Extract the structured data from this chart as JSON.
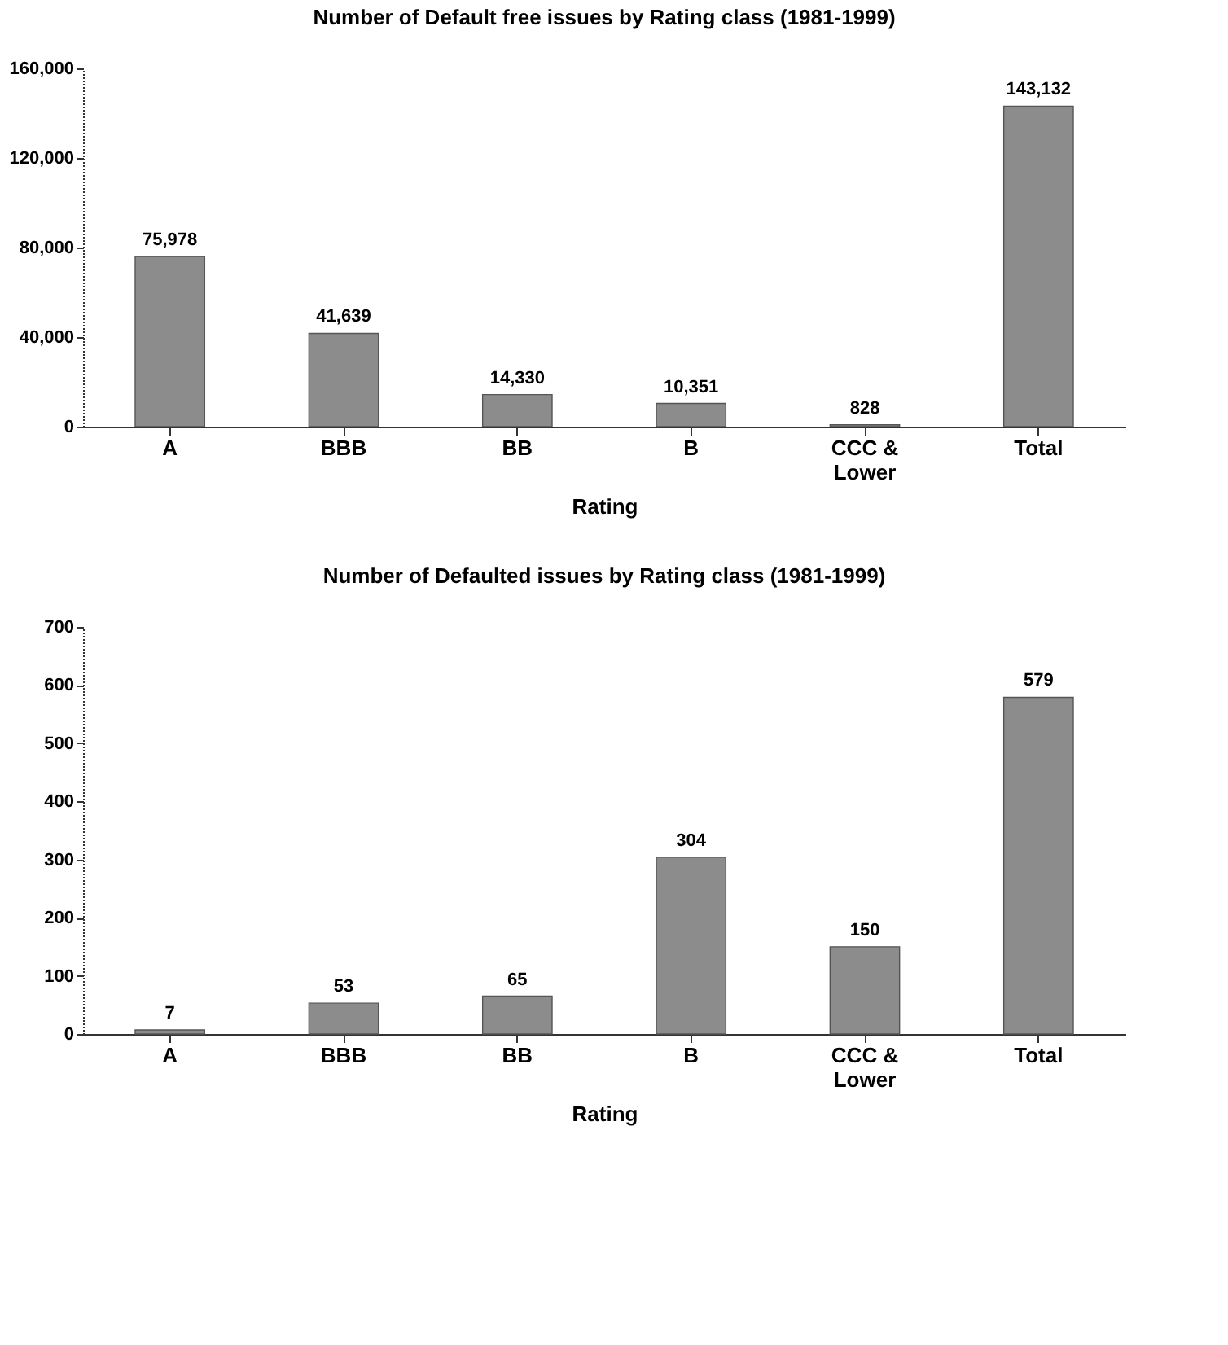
{
  "chart_data": [
    {
      "type": "bar",
      "title": "Number of Default free issues by Rating class (1981-1999)",
      "xlabel": "Rating",
      "categories": [
        "A",
        "BBB",
        "BB",
        "B",
        "CCC &\nLower",
        "Total"
      ],
      "values": [
        75978,
        41639,
        14330,
        10351,
        828,
        143132
      ],
      "color": "#8c8c8c",
      "ylim": [
        0,
        160000
      ],
      "yticks": [
        0,
        {
          "value": 40000,
          "label": "40,000"
        },
        {
          "value": 80000,
          "label": "80,000"
        },
        {
          "value": 120000,
          "label": "120,000"
        },
        {
          "value": 160000,
          "label": "160,000"
        }
      ],
      "value_labels": [
        "75,978",
        "41,639",
        "14,330",
        "10,351",
        "828",
        "143,132"
      ],
      "grid": false
    },
    {
      "type": "bar",
      "title": "Number of Defaulted issues by Rating class (1981-1999)",
      "xlabel": "Rating",
      "categories": [
        "A",
        "BBB",
        "BB",
        "B",
        "CCC &\nLower",
        "Total"
      ],
      "values": [
        7,
        53,
        65,
        304,
        150,
        579
      ],
      "color": "#8c8c8c",
      "ylim": [
        0,
        700
      ],
      "yticks": [
        0,
        100,
        200,
        300,
        400,
        500,
        600,
        700
      ],
      "data_labels": true,
      "grid": false
    }
  ]
}
